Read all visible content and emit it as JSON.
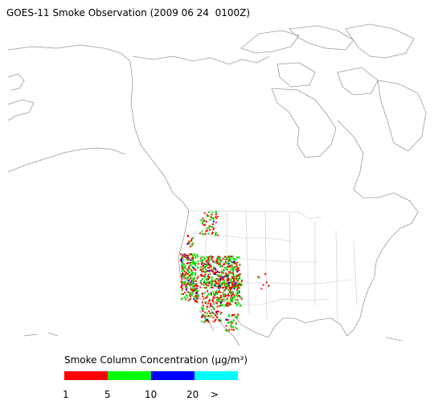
{
  "title": "GOES-11 Smoke Observation (2009 06 24  0100Z)",
  "legend": {
    "title": "Smoke Column Concentration (μg/m³)",
    "segments": [
      {
        "color": "#ff0000"
      },
      {
        "color": "#00ff00"
      },
      {
        "color": "#0000ff"
      },
      {
        "color": "#00ffff"
      }
    ],
    "labels": [
      "1",
      "5",
      "10",
      "20",
      ">"
    ]
  }
}
